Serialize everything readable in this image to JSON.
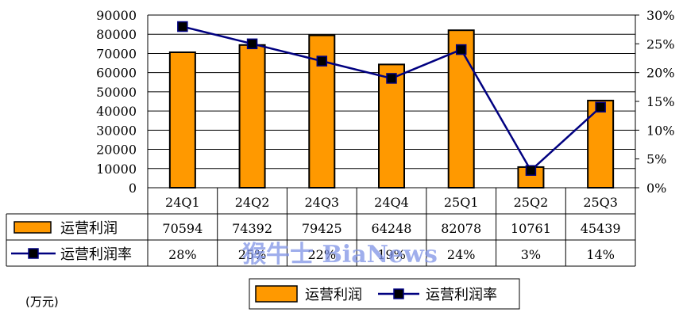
{
  "chart_data": {
    "type": "bar",
    "categories": [
      "24Q1",
      "24Q2",
      "24Q3",
      "24Q4",
      "25Q1",
      "25Q2",
      "25Q3"
    ],
    "series": [
      {
        "name": "运营利润",
        "type": "bar",
        "axis": "left",
        "values": [
          70594,
          74392,
          79425,
          64248,
          82078,
          10761,
          45439
        ]
      },
      {
        "name": "运营利润率",
        "type": "line",
        "axis": "right",
        "values": [
          28,
          25,
          22,
          19,
          24,
          3,
          14
        ]
      }
    ],
    "table_rows": [
      {
        "label": "运营利润",
        "cells": [
          "70594",
          "74392",
          "79425",
          "64248",
          "82078",
          "10761",
          "45439"
        ]
      },
      {
        "label": "运营利润率",
        "cells": [
          "28%",
          "25%",
          "22%",
          "19%",
          "24%",
          "3%",
          "14%"
        ]
      }
    ],
    "y_left": {
      "ylim": [
        0,
        90000
      ],
      "ticks": [
        "0",
        "10000",
        "20000",
        "30000",
        "40000",
        "50000",
        "60000",
        "70000",
        "80000",
        "90000"
      ]
    },
    "y_right": {
      "ylim": [
        0,
        30
      ],
      "ticks": [
        "0%",
        "5%",
        "10%",
        "15%",
        "20%",
        "25%",
        "30%"
      ]
    },
    "legend": {
      "items": [
        "运营利润",
        "运营利润率"
      ],
      "position": "bottom"
    },
    "unit_label": "(万元)",
    "watermark": "猴牛士 BiaNews",
    "colors": {
      "bar_fill": "#FF9900",
      "bar_stroke": "#000000",
      "line": "#000080",
      "marker": "#000000",
      "grid": "#000000"
    }
  }
}
